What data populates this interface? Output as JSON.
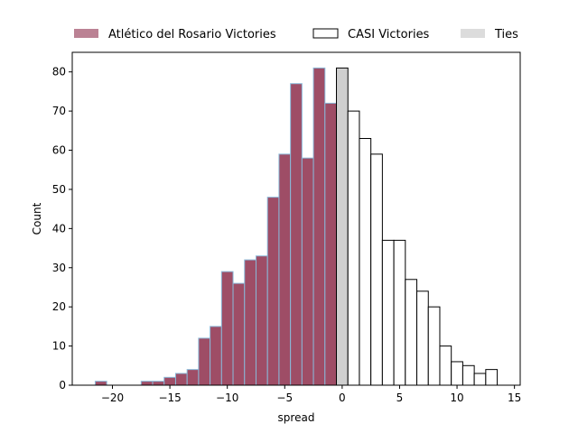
{
  "chart_data": {
    "type": "bar",
    "xlabel": "spread",
    "ylabel": "Count",
    "xlim": [
      -23.5,
      15.5
    ],
    "ylim": [
      0,
      85
    ],
    "xticks": [
      -20,
      -15,
      -10,
      -5,
      0,
      5,
      10,
      15
    ],
    "yticks": [
      0,
      10,
      20,
      30,
      40,
      50,
      60,
      70,
      80
    ],
    "bin_width": 1,
    "legend_position": "top",
    "grid": false,
    "series": [
      {
        "name": "Atlético del Rosario Victories",
        "fill": "#9e4d66",
        "stroke": "#8ab8d8",
        "bins": [
          {
            "x": -21,
            "count": 1
          },
          {
            "x": -17,
            "count": 1
          },
          {
            "x": -16,
            "count": 1
          },
          {
            "x": -15,
            "count": 2
          },
          {
            "x": -14,
            "count": 3
          },
          {
            "x": -13,
            "count": 4
          },
          {
            "x": -12,
            "count": 12
          },
          {
            "x": -11,
            "count": 15
          },
          {
            "x": -10,
            "count": 29
          },
          {
            "x": -9,
            "count": 26
          },
          {
            "x": -8,
            "count": 32
          },
          {
            "x": -7,
            "count": 33
          },
          {
            "x": -6,
            "count": 48
          },
          {
            "x": -5,
            "count": 59
          },
          {
            "x": -4,
            "count": 77
          },
          {
            "x": -3,
            "count": 58
          },
          {
            "x": -2,
            "count": 81
          },
          {
            "x": -1,
            "count": 72
          }
        ]
      },
      {
        "name": "Ties",
        "fill": "#cfcfcf",
        "stroke": "#000000",
        "legend_fill": "#dcdcdc",
        "bins": [
          {
            "x": 0,
            "count": 81
          }
        ]
      },
      {
        "name": "CASI Victories",
        "fill": "#ffffff",
        "stroke": "#000000",
        "bins": [
          {
            "x": 1,
            "count": 70
          },
          {
            "x": 2,
            "count": 63
          },
          {
            "x": 3,
            "count": 59
          },
          {
            "x": 4,
            "count": 37
          },
          {
            "x": 5,
            "count": 37
          },
          {
            "x": 6,
            "count": 27
          },
          {
            "x": 7,
            "count": 24
          },
          {
            "x": 8,
            "count": 20
          },
          {
            "x": 9,
            "count": 10
          },
          {
            "x": 10,
            "count": 6
          },
          {
            "x": 11,
            "count": 5
          },
          {
            "x": 12,
            "count": 3
          },
          {
            "x": 13,
            "count": 4
          }
        ]
      }
    ],
    "legend_order": [
      "Atlético del Rosario Victories",
      "CASI Victories",
      "Ties"
    ]
  }
}
